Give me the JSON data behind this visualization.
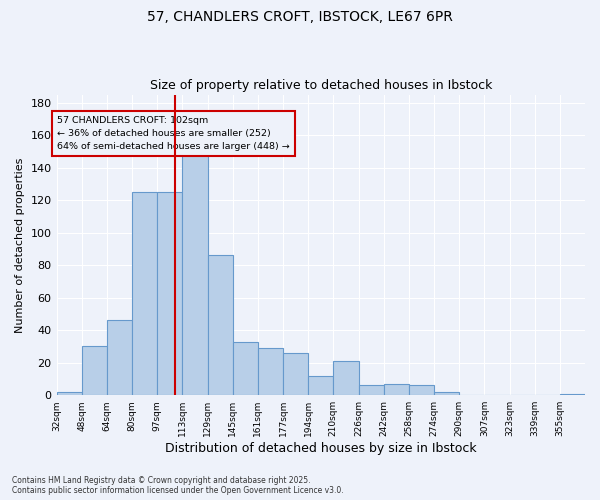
{
  "title1": "57, CHANDLERS CROFT, IBSTOCK, LE67 6PR",
  "title2": "Size of property relative to detached houses in Ibstock",
  "xlabel": "Distribution of detached houses by size in Ibstock",
  "ylabel": "Number of detached properties",
  "bin_labels": [
    "32sqm",
    "48sqm",
    "64sqm",
    "80sqm",
    "97sqm",
    "113sqm",
    "129sqm",
    "145sqm",
    "161sqm",
    "177sqm",
    "194sqm",
    "210sqm",
    "226sqm",
    "242sqm",
    "258sqm",
    "274sqm",
    "290sqm",
    "307sqm",
    "323sqm",
    "339sqm",
    "355sqm"
  ],
  "bar_heights": [
    2,
    30,
    46,
    125,
    125,
    148,
    86,
    33,
    29,
    26,
    12,
    21,
    6,
    7,
    6,
    2,
    0,
    0,
    0,
    0,
    1
  ],
  "bar_color": "#b8cfe8",
  "bar_edge_color": "#6699cc",
  "property_line_x": 4.7,
  "property_line_color": "#cc0000",
  "annotation_text": "57 CHANDLERS CROFT: 102sqm\n← 36% of detached houses are smaller (252)\n64% of semi-detached houses are larger (448) →",
  "annotation_box_color": "#cc0000",
  "ylim": [
    0,
    185
  ],
  "yticks": [
    0,
    20,
    40,
    60,
    80,
    100,
    120,
    140,
    160,
    180
  ],
  "background_color": "#eef2fa",
  "grid_color": "#ffffff",
  "footer1": "Contains HM Land Registry data © Crown copyright and database right 2025.",
  "footer2": "Contains public sector information licensed under the Open Government Licence v3.0."
}
